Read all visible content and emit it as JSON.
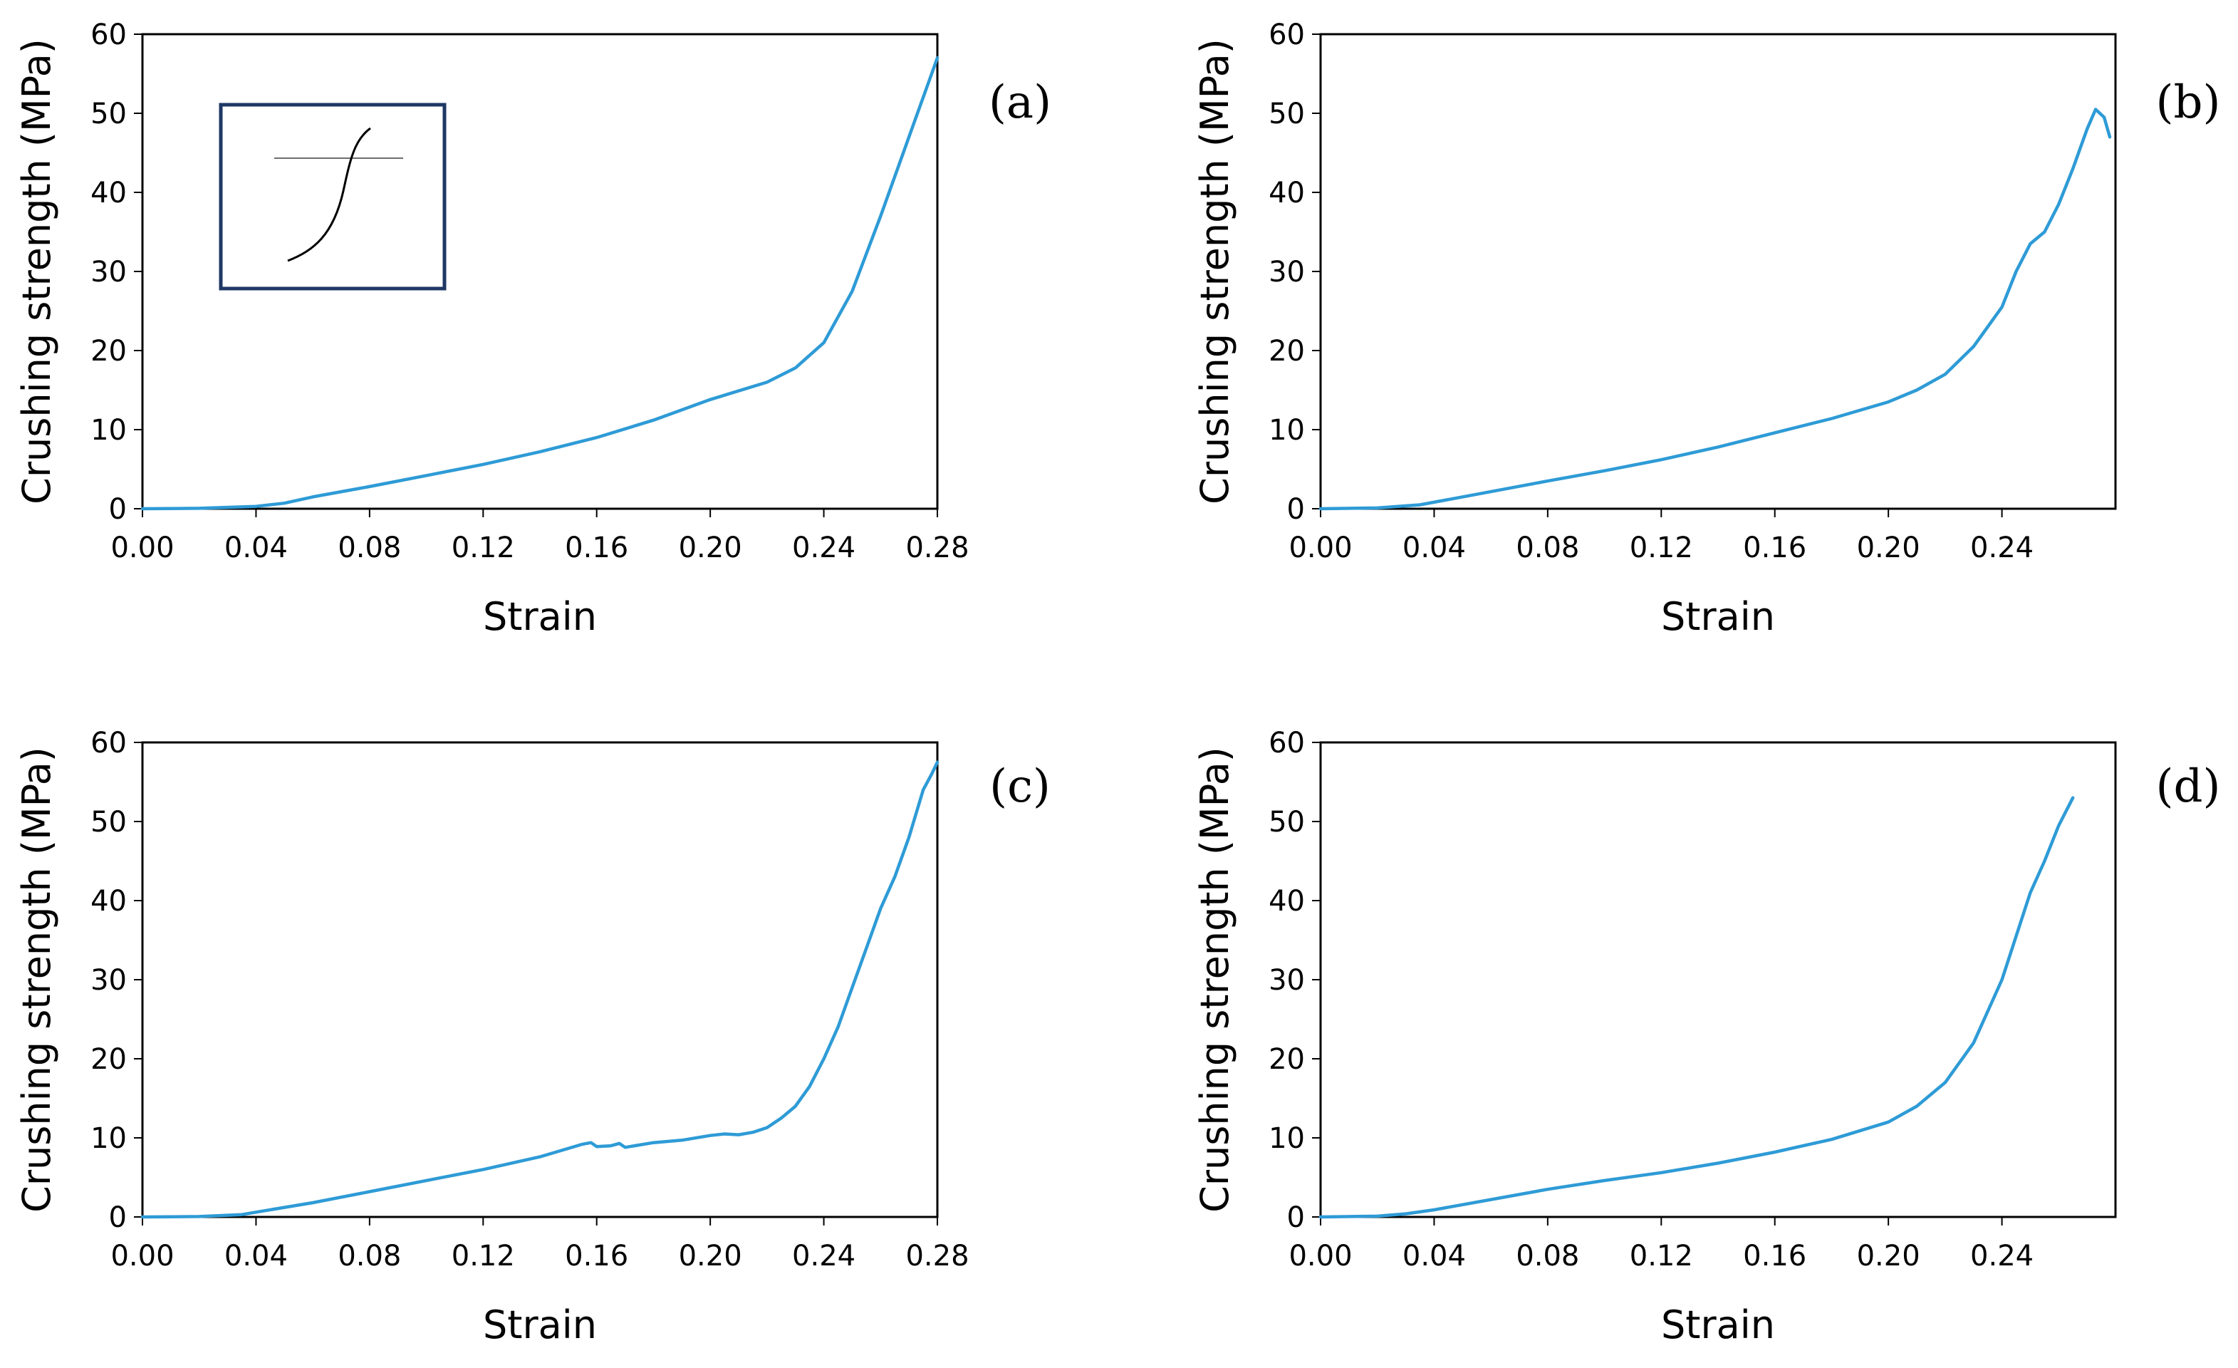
{
  "colors": {
    "line": "#2e9bd6",
    "inset_border": "#1f3864",
    "axis": "#000000"
  },
  "inset": {
    "label": "specimen sketch",
    "icon": "s-curve-icon"
  },
  "chart_data": [
    {
      "type": "line",
      "panel": "(a)",
      "xlabel": "Strain",
      "ylabel": "Crushing strength (MPa)",
      "xlim": [
        0,
        0.28
      ],
      "ylim": [
        0,
        60
      ],
      "xticks": [
        0,
        0.04,
        0.08,
        0.12,
        0.16,
        0.2,
        0.24,
        0.28
      ],
      "xtick_labels": [
        "0.00",
        "0.04",
        "0.08",
        "0.12",
        "0.16",
        "0.20",
        "0.24",
        "0.28"
      ],
      "yticks": [
        0,
        10,
        20,
        30,
        40,
        50,
        60
      ],
      "ytick_labels": [
        "0",
        "10",
        "20",
        "30",
        "40",
        "50",
        "60"
      ],
      "has_inset": true,
      "series": [
        {
          "name": "(a)",
          "points": [
            [
              0,
              0
            ],
            [
              0.02,
              0.05
            ],
            [
              0.04,
              0.3
            ],
            [
              0.05,
              0.7
            ],
            [
              0.06,
              1.5
            ],
            [
              0.08,
              2.8
            ],
            [
              0.1,
              4.2
            ],
            [
              0.12,
              5.6
            ],
            [
              0.14,
              7.2
            ],
            [
              0.16,
              9.0
            ],
            [
              0.18,
              11.2
            ],
            [
              0.19,
              12.5
            ],
            [
              0.2,
              13.8
            ],
            [
              0.22,
              16.0
            ],
            [
              0.23,
              17.8
            ],
            [
              0.24,
              21.0
            ],
            [
              0.25,
              27.5
            ],
            [
              0.26,
              37.0
            ],
            [
              0.27,
              47.0
            ],
            [
              0.278,
              55.0
            ],
            [
              0.28,
              57.0
            ]
          ]
        }
      ]
    },
    {
      "type": "line",
      "panel": "(b)",
      "xlabel": "Strain",
      "ylabel": "Crushing strength (MPa)",
      "xlim": [
        0,
        0.28
      ],
      "ylim": [
        0,
        60
      ],
      "xticks": [
        0,
        0.04,
        0.08,
        0.12,
        0.16,
        0.2,
        0.24
      ],
      "xtick_labels": [
        "0.00",
        "0.04",
        "0.08",
        "0.12",
        "0.16",
        "0.20",
        "0.24"
      ],
      "yticks": [
        0,
        10,
        20,
        30,
        40,
        50,
        60
      ],
      "ytick_labels": [
        "0",
        "10",
        "20",
        "30",
        "40",
        "50",
        "60"
      ],
      "has_inset": false,
      "series": [
        {
          "name": "(b)",
          "points": [
            [
              0,
              0
            ],
            [
              0.02,
              0.1
            ],
            [
              0.035,
              0.5
            ],
            [
              0.05,
              1.5
            ],
            [
              0.08,
              3.5
            ],
            [
              0.1,
              4.8
            ],
            [
              0.12,
              6.2
            ],
            [
              0.14,
              7.8
            ],
            [
              0.16,
              9.6
            ],
            [
              0.18,
              11.4
            ],
            [
              0.2,
              13.5
            ],
            [
              0.21,
              15.0
            ],
            [
              0.22,
              17.0
            ],
            [
              0.23,
              20.5
            ],
            [
              0.24,
              25.5
            ],
            [
              0.245,
              30.0
            ],
            [
              0.25,
              33.5
            ],
            [
              0.255,
              35.0
            ],
            [
              0.26,
              38.5
            ],
            [
              0.265,
              43.0
            ],
            [
              0.27,
              48.0
            ],
            [
              0.273,
              50.5
            ],
            [
              0.276,
              49.5
            ],
            [
              0.278,
              47.0
            ]
          ]
        }
      ]
    },
    {
      "type": "line",
      "panel": "(c)",
      "xlabel": "Strain",
      "ylabel": "Crushing strength (MPa)",
      "xlim": [
        0,
        0.28
      ],
      "ylim": [
        0,
        60
      ],
      "xticks": [
        0,
        0.04,
        0.08,
        0.12,
        0.16,
        0.2,
        0.24,
        0.28
      ],
      "xtick_labels": [
        "0.00",
        "0.04",
        "0.08",
        "0.12",
        "0.16",
        "0.20",
        "0.24",
        "0.28"
      ],
      "yticks": [
        0,
        10,
        20,
        30,
        40,
        50,
        60
      ],
      "ytick_labels": [
        "0",
        "10",
        "20",
        "30",
        "40",
        "50",
        "60"
      ],
      "has_inset": false,
      "series": [
        {
          "name": "(c)",
          "points": [
            [
              0,
              0
            ],
            [
              0.02,
              0.05
            ],
            [
              0.035,
              0.3
            ],
            [
              0.04,
              0.6
            ],
            [
              0.06,
              1.8
            ],
            [
              0.08,
              3.2
            ],
            [
              0.1,
              4.6
            ],
            [
              0.12,
              6.0
            ],
            [
              0.14,
              7.6
            ],
            [
              0.155,
              9.2
            ],
            [
              0.158,
              9.4
            ],
            [
              0.16,
              8.9
            ],
            [
              0.165,
              9.0
            ],
            [
              0.168,
              9.3
            ],
            [
              0.17,
              8.8
            ],
            [
              0.18,
              9.4
            ],
            [
              0.19,
              9.7
            ],
            [
              0.2,
              10.3
            ],
            [
              0.205,
              10.5
            ],
            [
              0.21,
              10.4
            ],
            [
              0.215,
              10.7
            ],
            [
              0.22,
              11.3
            ],
            [
              0.225,
              12.5
            ],
            [
              0.23,
              14.0
            ],
            [
              0.235,
              16.5
            ],
            [
              0.24,
              20.0
            ],
            [
              0.245,
              24.0
            ],
            [
              0.25,
              29.0
            ],
            [
              0.255,
              34.0
            ],
            [
              0.26,
              39.0
            ],
            [
              0.265,
              43.0
            ],
            [
              0.27,
              48.0
            ],
            [
              0.275,
              54.0
            ],
            [
              0.278,
              56.0
            ],
            [
              0.28,
              57.5
            ]
          ]
        }
      ]
    },
    {
      "type": "line",
      "panel": "(d)",
      "xlabel": "Strain",
      "ylabel": "Crushing strength (MPa)",
      "xlim": [
        0,
        0.28
      ],
      "ylim": [
        0,
        60
      ],
      "xticks": [
        0,
        0.04,
        0.08,
        0.12,
        0.16,
        0.2,
        0.24
      ],
      "xtick_labels": [
        "0.00",
        "0.04",
        "0.08",
        "0.12",
        "0.16",
        "0.20",
        "0.24"
      ],
      "yticks": [
        0,
        10,
        20,
        30,
        40,
        50,
        60
      ],
      "ytick_labels": [
        "0",
        "10",
        "20",
        "30",
        "40",
        "50",
        "60"
      ],
      "has_inset": false,
      "series": [
        {
          "name": "(d)",
          "points": [
            [
              0,
              0
            ],
            [
              0.02,
              0.1
            ],
            [
              0.03,
              0.4
            ],
            [
              0.04,
              0.9
            ],
            [
              0.06,
              2.2
            ],
            [
              0.08,
              3.5
            ],
            [
              0.1,
              4.6
            ],
            [
              0.12,
              5.6
            ],
            [
              0.14,
              6.8
            ],
            [
              0.16,
              8.2
            ],
            [
              0.18,
              9.8
            ],
            [
              0.2,
              12.0
            ],
            [
              0.21,
              14.0
            ],
            [
              0.22,
              17.0
            ],
            [
              0.23,
              22.0
            ],
            [
              0.24,
              30.0
            ],
            [
              0.25,
              41.0
            ],
            [
              0.255,
              45.0
            ],
            [
              0.26,
              49.5
            ],
            [
              0.265,
              53.0
            ]
          ]
        }
      ]
    }
  ]
}
